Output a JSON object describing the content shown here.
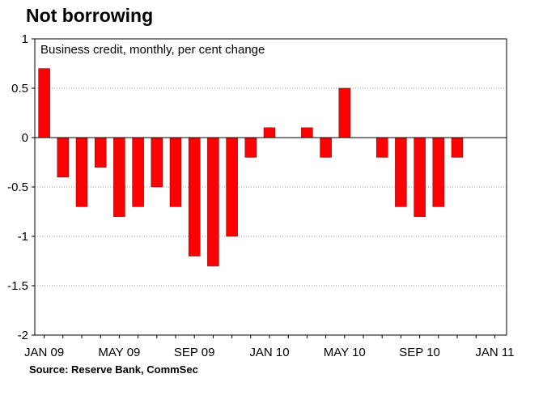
{
  "title": "Not borrowing",
  "source": "Source: Reserve Bank, CommSec",
  "colors": {
    "bar": "#ff0000",
    "bar_stroke": "#7a0000",
    "grid": "#999999",
    "axis": "#000000"
  },
  "chart_data": {
    "type": "bar",
    "subtitle": "Business credit, monthly, per cent change",
    "ylim": [
      -2,
      1
    ],
    "yticks": [
      1,
      0.5,
      0,
      -0.5,
      -1,
      -1.5,
      -2
    ],
    "ytick_labels": [
      "1",
      "0.5",
      "0",
      "-0.5",
      "-1",
      "-1.5",
      "-2"
    ],
    "xtick_labels": [
      "JAN 09",
      "MAY 09",
      "SEP 09",
      "JAN 10",
      "MAY 10",
      "SEP 10",
      "JAN 11"
    ],
    "grid": true,
    "categories": [
      "Jan 09",
      "Feb 09",
      "Mar 09",
      "Apr 09",
      "May 09",
      "Jun 09",
      "Jul 09",
      "Aug 09",
      "Sep 09",
      "Oct 09",
      "Nov 09",
      "Dec 09",
      "Jan 10",
      "Feb 10",
      "Mar 10",
      "Apr 10",
      "May 10",
      "Jun 10",
      "Jul 10",
      "Aug 10",
      "Sep 10",
      "Oct 10",
      "Nov 10",
      "Dec 10",
      "Jan 11"
    ],
    "values": [
      0.7,
      -0.4,
      -0.7,
      -0.3,
      -0.8,
      -0.7,
      -0.5,
      -0.7,
      -1.2,
      -1.3,
      -1.0,
      -0.2,
      0.1,
      0,
      0.1,
      -0.2,
      0.5,
      0,
      -0.2,
      -0.7,
      -0.8,
      -0.7,
      -0.2,
      0,
      0
    ]
  }
}
